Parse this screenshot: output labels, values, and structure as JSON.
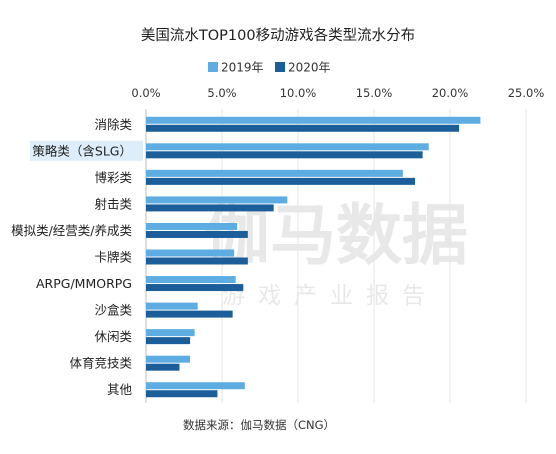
{
  "chart_data": {
    "type": "bar",
    "orientation": "horizontal",
    "title": "美国流水TOP100移动游戏各类型流水分布",
    "categories": [
      "消除类",
      "策略类（含SLG）",
      "博彩类",
      "射击类",
      "模拟类/经营类/养成类",
      "卡牌类",
      "ARPG/MMORPG",
      "沙盒类",
      "休闲类",
      "体育竞技类",
      "其他"
    ],
    "series": [
      {
        "name": "2019年",
        "color": "#5DADE2",
        "values": [
          22.0,
          18.6,
          16.9,
          9.3,
          6.0,
          5.8,
          5.9,
          3.4,
          3.2,
          2.9,
          6.5
        ]
      },
      {
        "name": "2020年",
        "color": "#1B5E99",
        "values": [
          20.6,
          18.2,
          17.7,
          8.4,
          6.7,
          6.7,
          6.4,
          5.7,
          2.9,
          2.2,
          4.7
        ]
      }
    ],
    "xlim": [
      0,
      25
    ],
    "x_ticks": [
      "0.0%",
      "5.0%",
      "10.0%",
      "15.0%",
      "20.0%",
      "25.0%"
    ],
    "grid": true,
    "legend_position": "top-center",
    "highlighted_category": "策略类（含SLG）",
    "highlight_color": "#DDEEFA",
    "source_note": "数据来源：伽马数据（CNG）",
    "watermark": "伽马数据 · 游戏产业报告"
  }
}
